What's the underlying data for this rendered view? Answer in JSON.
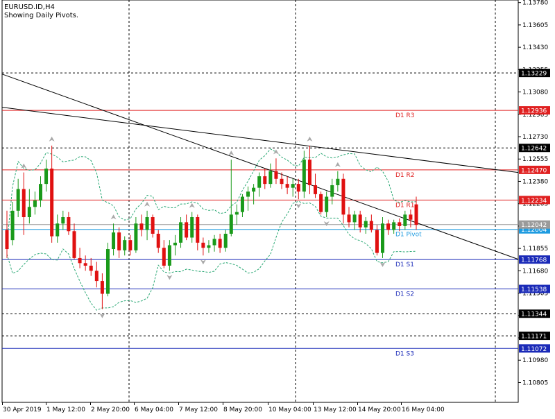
{
  "header": {
    "symbol_line": "EURUSD.ID,H4",
    "subtitle": "Showing Daily Pivots."
  },
  "colors": {
    "background": "#ffffff",
    "bull": "#1a9a1a",
    "bear": "#e01010",
    "resistance": "#e02020",
    "support": "#1a2ab8",
    "pivot": "#1e9be0",
    "bands": "#2aa874",
    "trendline": "#000000",
    "fractal": "#a9a9a9"
  },
  "chart_data": {
    "type": "candlestick",
    "price_axis_ticks": [
      "1.13780",
      "1.13605",
      "1.13430",
      "1.13255",
      "1.13080",
      "1.12905",
      "1.12730",
      "1.12555",
      "1.12380",
      "1.12205",
      "1.12030",
      "1.11855",
      "1.11680",
      "1.11505",
      "1.11330",
      "1.11155",
      "1.10980",
      "1.10805"
    ],
    "time_axis_labels": [
      "30 Apr 2019",
      "1 May 12:00",
      "2 May 20:00",
      "6 May 04:00",
      "7 May 12:00",
      "8 May 20:00",
      "10 May 04:00",
      "13 May 12:00",
      "14 May 20:00",
      "16 May 04:00"
    ],
    "ylim": [
      1.1065,
      1.138
    ],
    "pivot_levels": [
      {
        "name": "D1 R3",
        "value": 1.12936,
        "label": "1.12936",
        "kind": "resistance"
      },
      {
        "name": "D1 R2",
        "value": 1.1247,
        "label": "1.12470",
        "kind": "resistance"
      },
      {
        "name": "D1 R1",
        "value": 1.12234,
        "label": "1.12234",
        "kind": "resistance"
      },
      {
        "name": "D1 Pivot",
        "value": 1.12004,
        "label": "1.12004",
        "kind": "pivot"
      },
      {
        "name": "D1 S1",
        "value": 1.11768,
        "label": "1.11768",
        "kind": "support"
      },
      {
        "name": "D1 S2",
        "value": 1.11538,
        "label": "1.11538",
        "kind": "support"
      },
      {
        "name": "D1 S3",
        "value": 1.11072,
        "label": "1.11072",
        "kind": "support"
      }
    ],
    "extra_levels": [
      {
        "value": 1.13229,
        "label": "1.13229"
      },
      {
        "value": 1.12642,
        "label": "1.12642"
      },
      {
        "value": 1.11344,
        "label": "1.11344"
      },
      {
        "value": 1.11171,
        "label": "1.11171"
      }
    ],
    "current_price": {
      "value": 1.12042,
      "label": "1.12042"
    },
    "trendlines": [
      {
        "from": [
          0,
          1.1296
        ],
        "to": [
          1,
          1.1245
        ]
      },
      {
        "from": [
          0,
          1.1322
        ],
        "to": [
          1,
          1.1177
        ]
      }
    ],
    "candles": [
      {
        "o": 1.12,
        "h": 1.1215,
        "l": 1.1178,
        "c": 1.1185
      },
      {
        "o": 1.1192,
        "h": 1.1222,
        "l": 1.1188,
        "c": 1.1215
      },
      {
        "o": 1.1215,
        "h": 1.124,
        "l": 1.121,
        "c": 1.1232
      },
      {
        "o": 1.1232,
        "h": 1.1245,
        "l": 1.1196,
        "c": 1.121
      },
      {
        "o": 1.121,
        "h": 1.1232,
        "l": 1.1205,
        "c": 1.1218
      },
      {
        "o": 1.1218,
        "h": 1.123,
        "l": 1.1212,
        "c": 1.1223
      },
      {
        "o": 1.1223,
        "h": 1.1242,
        "l": 1.1218,
        "c": 1.1236
      },
      {
        "o": 1.1236,
        "h": 1.1255,
        "l": 1.123,
        "c": 1.1248
      },
      {
        "o": 1.1248,
        "h": 1.1266,
        "l": 1.119,
        "c": 1.1195
      },
      {
        "o": 1.1195,
        "h": 1.1212,
        "l": 1.119,
        "c": 1.1205
      },
      {
        "o": 1.1205,
        "h": 1.1215,
        "l": 1.12,
        "c": 1.121
      },
      {
        "o": 1.121,
        "h": 1.1214,
        "l": 1.1196,
        "c": 1.1199
      },
      {
        "o": 1.1199,
        "h": 1.1205,
        "l": 1.1177,
        "c": 1.1178
      },
      {
        "o": 1.1178,
        "h": 1.1186,
        "l": 1.117,
        "c": 1.1174
      },
      {
        "o": 1.1174,
        "h": 1.118,
        "l": 1.1168,
        "c": 1.1172
      },
      {
        "o": 1.1172,
        "h": 1.1178,
        "l": 1.1164,
        "c": 1.1168
      },
      {
        "o": 1.1168,
        "h": 1.1175,
        "l": 1.1155,
        "c": 1.116
      },
      {
        "o": 1.116,
        "h": 1.1166,
        "l": 1.1138,
        "c": 1.115
      },
      {
        "o": 1.115,
        "h": 1.119,
        "l": 1.1148,
        "c": 1.1185
      },
      {
        "o": 1.1185,
        "h": 1.1205,
        "l": 1.118,
        "c": 1.1198
      },
      {
        "o": 1.1198,
        "h": 1.1202,
        "l": 1.1178,
        "c": 1.1184
      },
      {
        "o": 1.1184,
        "h": 1.1195,
        "l": 1.118,
        "c": 1.1192
      },
      {
        "o": 1.1192,
        "h": 1.1196,
        "l": 1.118,
        "c": 1.1184
      },
      {
        "o": 1.1184,
        "h": 1.121,
        "l": 1.1182,
        "c": 1.1205
      },
      {
        "o": 1.1205,
        "h": 1.1212,
        "l": 1.1195,
        "c": 1.12
      },
      {
        "o": 1.12,
        "h": 1.1215,
        "l": 1.1192,
        "c": 1.121
      },
      {
        "o": 1.121,
        "h": 1.1212,
        "l": 1.1194,
        "c": 1.1197
      },
      {
        "o": 1.1197,
        "h": 1.12,
        "l": 1.1182,
        "c": 1.1186
      },
      {
        "o": 1.1186,
        "h": 1.1192,
        "l": 1.117,
        "c": 1.1172
      },
      {
        "o": 1.1172,
        "h": 1.1192,
        "l": 1.1168,
        "c": 1.1188
      },
      {
        "o": 1.1188,
        "h": 1.1196,
        "l": 1.118,
        "c": 1.119
      },
      {
        "o": 1.119,
        "h": 1.121,
        "l": 1.1186,
        "c": 1.1206
      },
      {
        "o": 1.1206,
        "h": 1.1212,
        "l": 1.1192,
        "c": 1.1194
      },
      {
        "o": 1.1194,
        "h": 1.1214,
        "l": 1.119,
        "c": 1.121
      },
      {
        "o": 1.121,
        "h": 1.1212,
        "l": 1.1184,
        "c": 1.119
      },
      {
        "o": 1.119,
        "h": 1.1194,
        "l": 1.118,
        "c": 1.1186
      },
      {
        "o": 1.1186,
        "h": 1.1192,
        "l": 1.1182,
        "c": 1.1188
      },
      {
        "o": 1.1188,
        "h": 1.1196,
        "l": 1.1183,
        "c": 1.1193
      },
      {
        "o": 1.1193,
        "h": 1.1197,
        "l": 1.1182,
        "c": 1.1186
      },
      {
        "o": 1.1186,
        "h": 1.12,
        "l": 1.1183,
        "c": 1.1197
      },
      {
        "o": 1.1197,
        "h": 1.1255,
        "l": 1.1195,
        "c": 1.1212
      },
      {
        "o": 1.1212,
        "h": 1.122,
        "l": 1.1204,
        "c": 1.1214
      },
      {
        "o": 1.1214,
        "h": 1.1228,
        "l": 1.121,
        "c": 1.1226
      },
      {
        "o": 1.1226,
        "h": 1.1234,
        "l": 1.1215,
        "c": 1.123
      },
      {
        "o": 1.123,
        "h": 1.1236,
        "l": 1.122,
        "c": 1.1233
      },
      {
        "o": 1.1233,
        "h": 1.1245,
        "l": 1.1226,
        "c": 1.1242
      },
      {
        "o": 1.1242,
        "h": 1.1248,
        "l": 1.1232,
        "c": 1.1236
      },
      {
        "o": 1.1236,
        "h": 1.1252,
        "l": 1.1233,
        "c": 1.1246
      },
      {
        "o": 1.1246,
        "h": 1.1256,
        "l": 1.1236,
        "c": 1.124
      },
      {
        "o": 1.124,
        "h": 1.1245,
        "l": 1.1232,
        "c": 1.1236
      },
      {
        "o": 1.1236,
        "h": 1.1242,
        "l": 1.1228,
        "c": 1.1233
      },
      {
        "o": 1.1233,
        "h": 1.124,
        "l": 1.1226,
        "c": 1.1236
      },
      {
        "o": 1.1236,
        "h": 1.124,
        "l": 1.1224,
        "c": 1.123
      },
      {
        "o": 1.123,
        "h": 1.1262,
        "l": 1.1225,
        "c": 1.1255
      },
      {
        "o": 1.1255,
        "h": 1.1266,
        "l": 1.1228,
        "c": 1.1235
      },
      {
        "o": 1.1235,
        "h": 1.1244,
        "l": 1.1225,
        "c": 1.1228
      },
      {
        "o": 1.1228,
        "h": 1.123,
        "l": 1.1212,
        "c": 1.1214
      },
      {
        "o": 1.1214,
        "h": 1.123,
        "l": 1.121,
        "c": 1.1226
      },
      {
        "o": 1.1226,
        "h": 1.124,
        "l": 1.122,
        "c": 1.1235
      },
      {
        "o": 1.1235,
        "h": 1.1246,
        "l": 1.123,
        "c": 1.124
      },
      {
        "o": 1.124,
        "h": 1.1244,
        "l": 1.1205,
        "c": 1.1212
      },
      {
        "o": 1.1212,
        "h": 1.1218,
        "l": 1.1202,
        "c": 1.1206
      },
      {
        "o": 1.1206,
        "h": 1.1215,
        "l": 1.12,
        "c": 1.1212
      },
      {
        "o": 1.1212,
        "h": 1.1215,
        "l": 1.1198,
        "c": 1.1202
      },
      {
        "o": 1.1202,
        "h": 1.121,
        "l": 1.1197,
        "c": 1.1207
      },
      {
        "o": 1.1207,
        "h": 1.1212,
        "l": 1.1198,
        "c": 1.12
      },
      {
        "o": 1.12,
        "h": 1.1204,
        "l": 1.118,
        "c": 1.1182
      },
      {
        "o": 1.1182,
        "h": 1.121,
        "l": 1.1178,
        "c": 1.1205
      },
      {
        "o": 1.1205,
        "h": 1.1208,
        "l": 1.1196,
        "c": 1.12
      },
      {
        "o": 1.12,
        "h": 1.1208,
        "l": 1.1197,
        "c": 1.1206
      },
      {
        "o": 1.1206,
        "h": 1.1209,
        "l": 1.1199,
        "c": 1.1203
      },
      {
        "o": 1.1203,
        "h": 1.1215,
        "l": 1.12,
        "c": 1.1212
      },
      {
        "o": 1.1212,
        "h": 1.1216,
        "l": 1.1202,
        "c": 1.1208
      },
      {
        "o": 1.122,
        "h": 1.1226,
        "l": 1.12,
        "c": 1.1204
      }
    ]
  }
}
